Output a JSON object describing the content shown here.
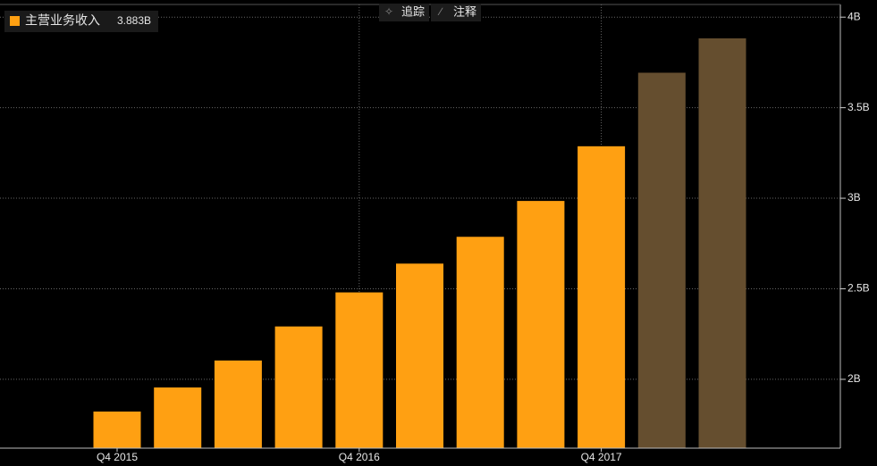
{
  "chart_data": {
    "type": "bar",
    "toolbar": [
      "追踪",
      "注释"
    ],
    "series_name": "主营业务收入",
    "categories": [
      "Q4 2015",
      null,
      null,
      null,
      "Q4 2016",
      null,
      null,
      null,
      "Q4 2017",
      null,
      null
    ],
    "values": [
      1.822,
      1.955,
      2.104,
      2.292,
      2.48,
      2.639,
      2.787,
      2.985,
      3.287,
      3.693,
      3.883
    ],
    "value_labels": [
      null,
      null,
      null,
      null,
      null,
      null,
      null,
      null,
      null,
      null,
      "3.883B"
    ],
    "colors": [
      "#ffa012",
      "#ffa012",
      "#ffa012",
      "#ffa012",
      "#ffa012",
      "#ffa012",
      "#ffa012",
      "#ffa012",
      "#ffa012",
      "#654e2f",
      "#654e2f"
    ],
    "legend_color": "#ffa012",
    "ylim": [
      1.62,
      4.07
    ],
    "yticks": [
      {
        "value": 2,
        "label": "2B"
      },
      {
        "value": 2.5,
        "label": "2.5B"
      },
      {
        "value": 3,
        "label": "3B"
      },
      {
        "value": 3.5,
        "label": "3.5B"
      },
      {
        "value": 4,
        "label": "4B"
      }
    ],
    "grid": true
  }
}
